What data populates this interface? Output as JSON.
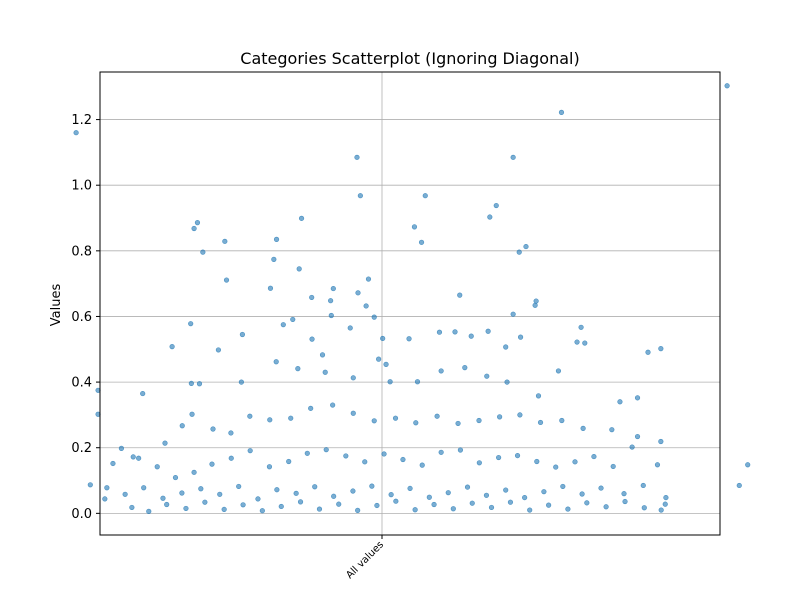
{
  "chart_data": {
    "type": "scatter",
    "title": "Categories Scatterplot (Ignoring Diagonal)",
    "xlabel": "",
    "ylabel": "Values",
    "categories": [
      "All values"
    ],
    "ylim": [
      -0.066,
      1.345
    ],
    "yticks": [
      0.0,
      0.2,
      0.4,
      0.6,
      0.8,
      1.0,
      1.2
    ],
    "ytick_labels": [
      "0.0",
      "0.2",
      "0.4",
      "0.6",
      "0.8",
      "1.0",
      "1.2"
    ],
    "grid": true,
    "marker_color": "#1f77b4",
    "jitter_range": [
      -1.0,
      1.0
    ],
    "points": [
      [
        -0.905,
        1.16
      ],
      [
        -0.074,
        1.085
      ],
      [
        -0.064,
        0.968
      ],
      [
        0.128,
        0.968
      ],
      [
        0.388,
        1.085
      ],
      [
        0.531,
        1.222
      ],
      [
        1.021,
        1.303
      ],
      [
        -0.546,
        0.886
      ],
      [
        -0.465,
        0.829
      ],
      [
        -0.312,
        0.835
      ],
      [
        -0.238,
        0.899
      ],
      [
        0.096,
        0.873
      ],
      [
        0.117,
        0.826
      ],
      [
        0.319,
        0.903
      ],
      [
        0.338,
        0.938
      ],
      [
        0.406,
        0.796
      ],
      [
        0.426,
        0.813
      ],
      [
        -0.556,
        0.868
      ],
      [
        -0.53,
        0.796
      ],
      [
        -0.04,
        0.714
      ],
      [
        -0.245,
        0.745
      ],
      [
        -0.32,
        0.774
      ],
      [
        -0.46,
        0.711
      ],
      [
        -0.33,
        0.686
      ],
      [
        -0.144,
        0.685
      ],
      [
        -0.208,
        0.658
      ],
      [
        -0.152,
        0.648
      ],
      [
        -0.071,
        0.672
      ],
      [
        -0.15,
        0.603
      ],
      [
        -0.264,
        0.591
      ],
      [
        -0.292,
        0.575
      ],
      [
        -0.047,
        0.632
      ],
      [
        0.23,
        0.665
      ],
      [
        0.388,
        0.607
      ],
      [
        0.453,
        0.634
      ],
      [
        0.456,
        0.647
      ],
      [
        0.589,
        0.567
      ],
      [
        -0.566,
        0.578
      ],
      [
        -0.621,
        0.508
      ],
      [
        -0.484,
        0.498
      ],
      [
        -0.413,
        0.545
      ],
      [
        -0.207,
        0.531
      ],
      [
        -0.094,
        0.565
      ],
      [
        -0.023,
        0.598
      ],
      [
        0.002,
        0.533
      ],
      [
        0.08,
        0.532
      ],
      [
        0.17,
        0.552
      ],
      [
        0.216,
        0.553
      ],
      [
        0.264,
        0.54
      ],
      [
        0.314,
        0.555
      ],
      [
        0.366,
        0.507
      ],
      [
        0.41,
        0.537
      ],
      [
        0.577,
        0.522
      ],
      [
        0.6,
        0.519
      ],
      [
        0.787,
        0.491
      ],
      [
        0.825,
        0.502
      ],
      [
        -0.84,
        0.375
      ],
      [
        -0.708,
        0.365
      ],
      [
        -0.564,
        0.396
      ],
      [
        -0.54,
        0.395
      ],
      [
        -0.416,
        0.4
      ],
      [
        -0.313,
        0.462
      ],
      [
        -0.249,
        0.441
      ],
      [
        -0.176,
        0.483
      ],
      [
        -0.168,
        0.43
      ],
      [
        -0.085,
        0.413
      ],
      [
        -0.01,
        0.47
      ],
      [
        0.012,
        0.454
      ],
      [
        0.024,
        0.401
      ],
      [
        0.105,
        0.401
      ],
      [
        0.175,
        0.434
      ],
      [
        0.245,
        0.444
      ],
      [
        0.31,
        0.418
      ],
      [
        0.37,
        0.4
      ],
      [
        0.463,
        0.358
      ],
      [
        0.522,
        0.434
      ],
      [
        0.704,
        0.34
      ],
      [
        0.756,
        0.352
      ],
      [
        -0.84,
        0.302
      ],
      [
        -0.771,
        0.198
      ],
      [
        -0.736,
        0.172
      ],
      [
        -0.642,
        0.214
      ],
      [
        -0.591,
        0.267
      ],
      [
        -0.562,
        0.302
      ],
      [
        -0.5,
        0.257
      ],
      [
        -0.447,
        0.245
      ],
      [
        -0.391,
        0.296
      ],
      [
        -0.332,
        0.285
      ],
      [
        -0.27,
        0.29
      ],
      [
        -0.211,
        0.32
      ],
      [
        -0.146,
        0.33
      ],
      [
        -0.085,
        0.305
      ],
      [
        -0.023,
        0.282
      ],
      [
        0.04,
        0.29
      ],
      [
        0.1,
        0.276
      ],
      [
        0.163,
        0.296
      ],
      [
        0.225,
        0.274
      ],
      [
        0.287,
        0.283
      ],
      [
        0.348,
        0.294
      ],
      [
        0.408,
        0.3
      ],
      [
        0.469,
        0.277
      ],
      [
        0.532,
        0.283
      ],
      [
        0.595,
        0.259
      ],
      [
        0.68,
        0.255
      ],
      [
        0.756,
        0.234
      ],
      [
        0.825,
        0.219
      ],
      [
        -0.796,
        0.152
      ],
      [
        -0.72,
        0.168
      ],
      [
        -0.665,
        0.142
      ],
      [
        -0.611,
        0.109
      ],
      [
        -0.556,
        0.125
      ],
      [
        -0.503,
        0.15
      ],
      [
        -0.446,
        0.168
      ],
      [
        -0.39,
        0.191
      ],
      [
        -0.333,
        0.142
      ],
      [
        -0.276,
        0.158
      ],
      [
        -0.221,
        0.183
      ],
      [
        -0.165,
        0.194
      ],
      [
        -0.107,
        0.175
      ],
      [
        -0.051,
        0.157
      ],
      [
        0.006,
        0.181
      ],
      [
        0.062,
        0.164
      ],
      [
        0.119,
        0.147
      ],
      [
        0.175,
        0.186
      ],
      [
        0.232,
        0.193
      ],
      [
        0.288,
        0.154
      ],
      [
        0.345,
        0.17
      ],
      [
        0.401,
        0.176
      ],
      [
        0.458,
        0.158
      ],
      [
        0.514,
        0.141
      ],
      [
        0.571,
        0.157
      ],
      [
        0.627,
        0.173
      ],
      [
        0.684,
        0.143
      ],
      [
        0.74,
        0.202
      ],
      [
        0.815,
        0.148
      ],
      [
        -0.863,
        0.087
      ],
      [
        -0.814,
        0.078
      ],
      [
        -0.76,
        0.058
      ],
      [
        -0.705,
        0.078
      ],
      [
        -0.648,
        0.046
      ],
      [
        -0.592,
        0.062
      ],
      [
        -0.536,
        0.075
      ],
      [
        -0.48,
        0.058
      ],
      [
        -0.424,
        0.082
      ],
      [
        -0.367,
        0.044
      ],
      [
        -0.311,
        0.072
      ],
      [
        -0.254,
        0.061
      ],
      [
        -0.199,
        0.081
      ],
      [
        -0.143,
        0.052
      ],
      [
        -0.086,
        0.068
      ],
      [
        -0.03,
        0.083
      ],
      [
        0.027,
        0.057
      ],
      [
        0.083,
        0.076
      ],
      [
        0.14,
        0.049
      ],
      [
        0.196,
        0.063
      ],
      [
        0.253,
        0.08
      ],
      [
        0.309,
        0.055
      ],
      [
        0.366,
        0.071
      ],
      [
        0.422,
        0.048
      ],
      [
        0.479,
        0.066
      ],
      [
        0.535,
        0.082
      ],
      [
        0.592,
        0.059
      ],
      [
        0.648,
        0.077
      ],
      [
        0.716,
        0.06
      ],
      [
        0.773,
        0.085
      ],
      [
        0.84,
        0.048
      ],
      [
        -0.82,
        0.044
      ],
      [
        -0.74,
        0.018
      ],
      [
        -0.69,
        0.006
      ],
      [
        -0.637,
        0.027
      ],
      [
        -0.58,
        0.015
      ],
      [
        -0.524,
        0.034
      ],
      [
        -0.467,
        0.012
      ],
      [
        -0.411,
        0.026
      ],
      [
        -0.354,
        0.008
      ],
      [
        -0.298,
        0.021
      ],
      [
        -0.241,
        0.035
      ],
      [
        -0.185,
        0.013
      ],
      [
        -0.128,
        0.028
      ],
      [
        -0.072,
        0.009
      ],
      [
        -0.015,
        0.024
      ],
      [
        0.041,
        0.037
      ],
      [
        0.098,
        0.011
      ],
      [
        0.154,
        0.027
      ],
      [
        0.211,
        0.014
      ],
      [
        0.267,
        0.031
      ],
      [
        0.324,
        0.018
      ],
      [
        0.38,
        0.034
      ],
      [
        0.437,
        0.01
      ],
      [
        0.493,
        0.025
      ],
      [
        0.55,
        0.013
      ],
      [
        0.606,
        0.032
      ],
      [
        0.663,
        0.02
      ],
      [
        0.719,
        0.036
      ],
      [
        0.776,
        0.017
      ],
      [
        0.826,
        0.01
      ],
      [
        0.838,
        0.028
      ],
      [
        1.082,
        0.148
      ],
      [
        1.057,
        0.085
      ]
    ]
  }
}
